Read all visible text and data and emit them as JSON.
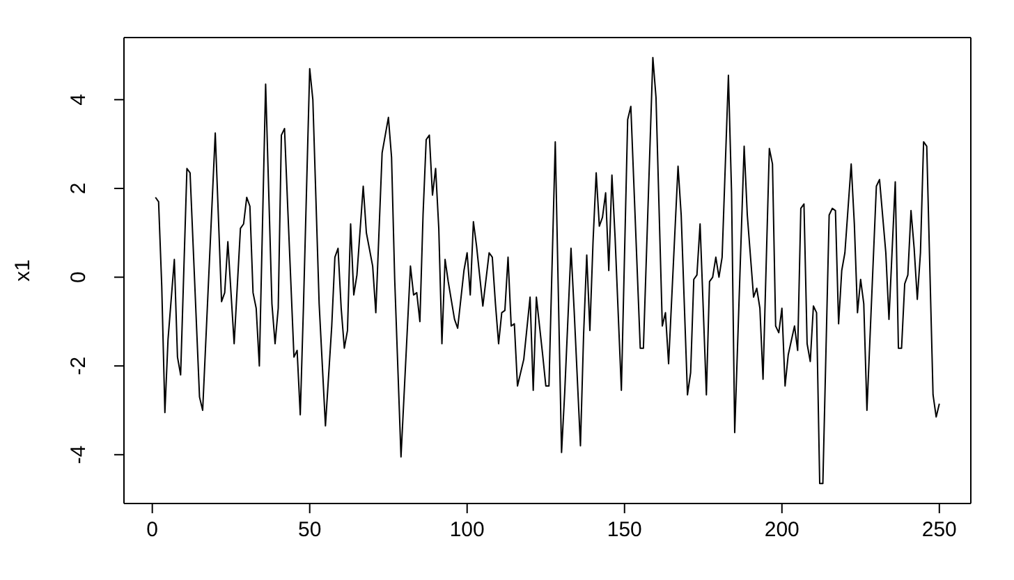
{
  "chart_data": {
    "type": "line",
    "ylabel": "x1",
    "x": [
      1,
      2,
      3,
      4,
      5,
      7,
      8,
      9,
      11,
      12,
      15,
      16,
      20,
      22,
      23,
      24,
      26,
      28,
      29,
      30,
      31,
      32,
      33,
      34,
      36,
      38,
      39,
      40,
      41,
      42,
      43,
      45,
      46,
      47,
      48,
      50,
      51,
      53,
      55,
      57,
      58,
      59,
      60,
      61,
      62,
      63,
      64,
      65,
      67,
      68,
      70,
      71,
      73,
      75,
      76,
      77,
      79,
      82,
      83,
      84,
      85,
      86,
      87,
      88,
      89,
      90,
      91,
      92,
      93,
      94,
      96,
      97,
      99,
      100,
      101,
      102,
      103,
      105,
      107,
      108,
      109,
      110,
      111,
      112,
      113,
      114,
      115,
      116,
      118,
      120,
      121,
      122,
      124,
      125,
      126,
      127,
      128,
      130,
      131,
      133,
      134,
      136,
      137,
      138,
      139,
      140,
      141,
      142,
      143,
      144,
      145,
      146,
      147,
      149,
      151,
      152,
      155,
      156,
      159,
      160,
      162,
      163,
      164,
      167,
      168,
      170,
      171,
      172,
      173,
      174,
      175,
      176,
      177,
      178,
      179,
      180,
      181,
      183,
      184,
      185,
      188,
      189,
      191,
      192,
      193,
      194,
      196,
      197,
      198,
      199,
      200,
      201,
      202,
      204,
      205,
      206,
      207,
      208,
      209,
      210,
      211,
      212,
      213,
      215,
      216,
      217,
      218,
      219,
      220,
      222,
      223,
      224,
      225,
      226,
      227,
      230,
      231,
      233,
      234,
      236,
      237,
      238,
      239,
      240,
      241,
      242,
      243,
      244,
      245,
      246,
      248,
      249,
      250
    ],
    "values": [
      1.8,
      1.7,
      -0.2,
      -3.05,
      -1.4,
      0.4,
      -1.8,
      -2.2,
      2.45,
      2.35,
      -2.7,
      -3.0,
      3.25,
      -0.55,
      -0.35,
      0.8,
      -1.5,
      1.1,
      1.2,
      1.8,
      1.6,
      -0.35,
      -0.7,
      -2.0,
      4.35,
      -0.6,
      -1.5,
      -0.7,
      3.2,
      3.35,
      1.6,
      -1.8,
      -1.65,
      -3.1,
      -0.7,
      4.7,
      4.0,
      -0.6,
      -3.35,
      -1.1,
      0.45,
      0.65,
      -0.7,
      -1.6,
      -1.2,
      1.2,
      -0.4,
      0.05,
      2.05,
      1.0,
      0.25,
      -0.8,
      2.8,
      3.6,
      2.7,
      -0.05,
      -4.05,
      0.25,
      -0.4,
      -0.35,
      -1.0,
      1.4,
      3.1,
      3.2,
      1.85,
      2.45,
      1.1,
      -1.5,
      0.4,
      -0.1,
      -0.95,
      -1.15,
      0.15,
      0.55,
      -0.4,
      1.25,
      0.7,
      -0.65,
      0.55,
      0.45,
      -0.6,
      -1.5,
      -0.8,
      -0.75,
      0.45,
      -1.1,
      -1.05,
      -2.45,
      -1.85,
      -0.45,
      -2.55,
      -0.45,
      -1.75,
      -2.45,
      -2.45,
      0.3,
      3.05,
      -3.95,
      -2.6,
      0.65,
      -0.75,
      -3.8,
      -1.3,
      0.5,
      -1.2,
      0.8,
      2.35,
      1.15,
      1.35,
      1.9,
      0.15,
      2.3,
      0.9,
      -2.55,
      3.55,
      3.85,
      -1.6,
      -1.6,
      4.95,
      4.05,
      -1.1,
      -0.8,
      -1.95,
      2.5,
      1.4,
      -2.65,
      -2.15,
      -0.05,
      0.05,
      1.2,
      -0.7,
      -2.65,
      -0.1,
      0.0,
      0.45,
      0.0,
      0.45,
      4.55,
      1.9,
      -3.5,
      2.95,
      1.4,
      -0.45,
      -0.25,
      -0.7,
      -2.3,
      2.9,
      2.55,
      -1.1,
      -1.25,
      -0.7,
      -2.45,
      -1.75,
      -1.1,
      -1.65,
      1.55,
      1.65,
      -1.5,
      -1.9,
      -0.65,
      -0.8,
      -4.65,
      -4.65,
      1.4,
      1.55,
      1.5,
      -1.05,
      0.15,
      0.55,
      2.55,
      1.2,
      -0.8,
      -0.05,
      -0.6,
      -3.0,
      2.05,
      2.2,
      0.55,
      -0.95,
      2.15,
      -1.6,
      -1.6,
      -0.15,
      0.05,
      1.5,
      0.65,
      -0.5,
      0.55,
      3.05,
      2.95,
      -2.65,
      -3.15,
      -2.85
    ],
    "color": "#000000",
    "xlim": [
      -9,
      260
    ],
    "ylim": [
      -5.1,
      5.4
    ],
    "xticks": [
      0,
      50,
      100,
      150,
      200,
      250
    ],
    "yticks": [
      -4,
      -2,
      0,
      2,
      4
    ],
    "marker": "none",
    "line_style": "solid"
  }
}
